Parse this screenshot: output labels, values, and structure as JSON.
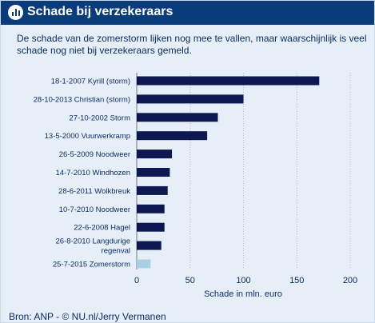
{
  "header": {
    "title": "Schade bij verzekeraars",
    "icon": "bar-chart-icon"
  },
  "subtitle": "De schade van de zomerstorm lijken nog mee te vallen, maar waarschijnlijk is veel schade nog niet bij verzekeraars gemeld.",
  "footer": {
    "source": "Bron: ANP - © NU.nl/Jerry Vermanen"
  },
  "colors": {
    "header_bg": "#0a3c7c",
    "panel_bg": "#e6eff8",
    "bar": "#0d1850",
    "highlight_bar": "#a9cfe2",
    "grid": "#b7bcc4",
    "text": "#0a2a5e"
  },
  "chart_data": {
    "type": "bar",
    "orientation": "horizontal",
    "categories": [
      [
        "18-1-2007 Kyrill (storm)"
      ],
      [
        "28-10-2013 Christian (storm)"
      ],
      [
        "27-10-2002 Storm"
      ],
      [
        "13-5-2000 Vuurwerkramp"
      ],
      [
        "26-5-2009 Noodweer"
      ],
      [
        "14-7-2010 Windhozen"
      ],
      [
        "28-6-2011 Wolkbreuk"
      ],
      [
        "10-7-2010 Noodweer"
      ],
      [
        "22-6-2008 Hagel"
      ],
      [
        "26-8-2010 Langdurige",
        "regenval"
      ],
      [
        "25-7-2015 Zomerstorm"
      ]
    ],
    "values": [
      171,
      100,
      76,
      66,
      33,
      31,
      29,
      26,
      26,
      23,
      13
    ],
    "highlight_index": 10,
    "xlabel": "Schade in mln. euro",
    "xlim": [
      0,
      200
    ],
    "xticks": [
      0,
      50,
      100,
      150,
      200
    ],
    "grid": "vertical dotted"
  }
}
